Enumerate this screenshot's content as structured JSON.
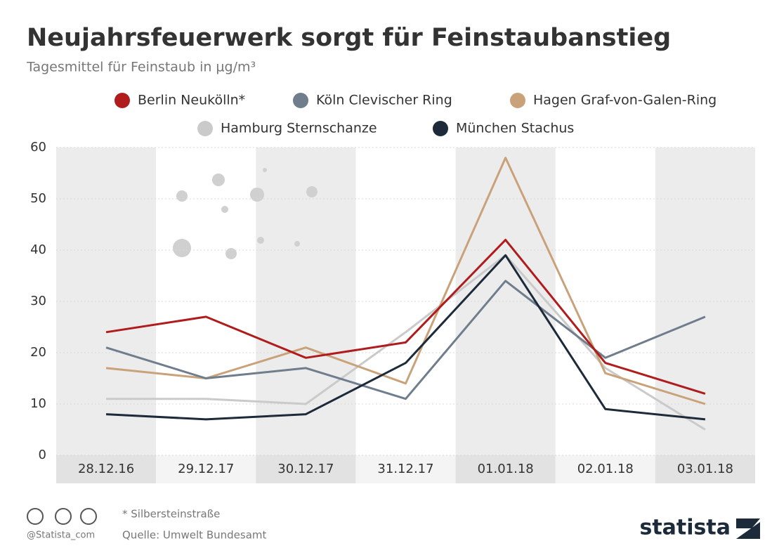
{
  "chart_data": {
    "type": "line",
    "title": "Neujahrsfeuerwerk sorgt für Feinstaubanstieg",
    "subtitle": "Tagesmittel für Feinstaub in µg/m³",
    "categories": [
      "28.12.16",
      "29.12.17",
      "30.12.17",
      "31.12.17",
      "01.01.18",
      "02.01.18",
      "03.01.18"
    ],
    "series": [
      {
        "name": "Berlin Neukölln*",
        "color": "#b01c1c",
        "values": [
          24,
          27,
          19,
          22,
          42,
          18,
          12
        ]
      },
      {
        "name": "Köln Clevischer Ring",
        "color": "#6f7d8c",
        "values": [
          21,
          15,
          17,
          11,
          34,
          19,
          27
        ]
      },
      {
        "name": "Hagen Graf-von-Galen-Ring",
        "color": "#c9a27a",
        "values": [
          17,
          15,
          21,
          14,
          58,
          16,
          10
        ]
      },
      {
        "name": "Hamburg Sternschanze",
        "color": "#cacaca",
        "values": [
          11,
          11,
          10,
          24,
          39,
          17,
          5
        ]
      },
      {
        "name": "München Stachus",
        "color": "#1c2a3a",
        "values": [
          8,
          7,
          8,
          18,
          39,
          9,
          7
        ]
      }
    ],
    "ylim": [
      0,
      60
    ],
    "yticks": [
      0,
      10,
      20,
      30,
      40,
      50,
      60
    ],
    "grid": true,
    "footnote": "* Silbersteinstraße",
    "source": "Quelle: Umwelt Bundesamt",
    "credit": "@Statista_com",
    "brand": "statista"
  }
}
